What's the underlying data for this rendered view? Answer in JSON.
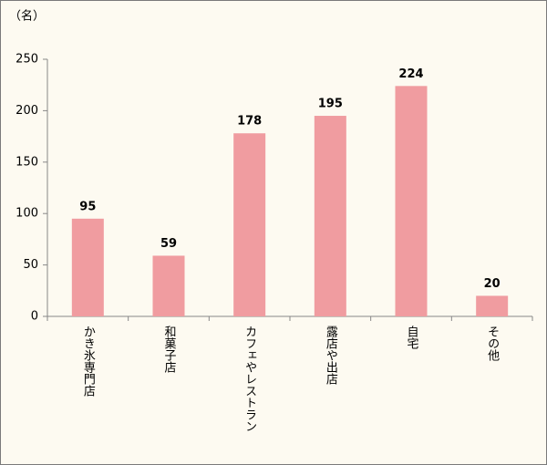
{
  "chart_data": {
    "type": "bar",
    "unit_label": "（名）",
    "categories": [
      "かき氷専門店",
      "和菓子店",
      "カフェやレストラン",
      "露店や出店",
      "自宅",
      "その他"
    ],
    "values": [
      95,
      59,
      178,
      195,
      224,
      20
    ],
    "color": "#f09ca0",
    "ylim": [
      0,
      250
    ],
    "yticks": [
      0,
      50,
      100,
      150,
      200,
      250
    ],
    "grid": false
  }
}
